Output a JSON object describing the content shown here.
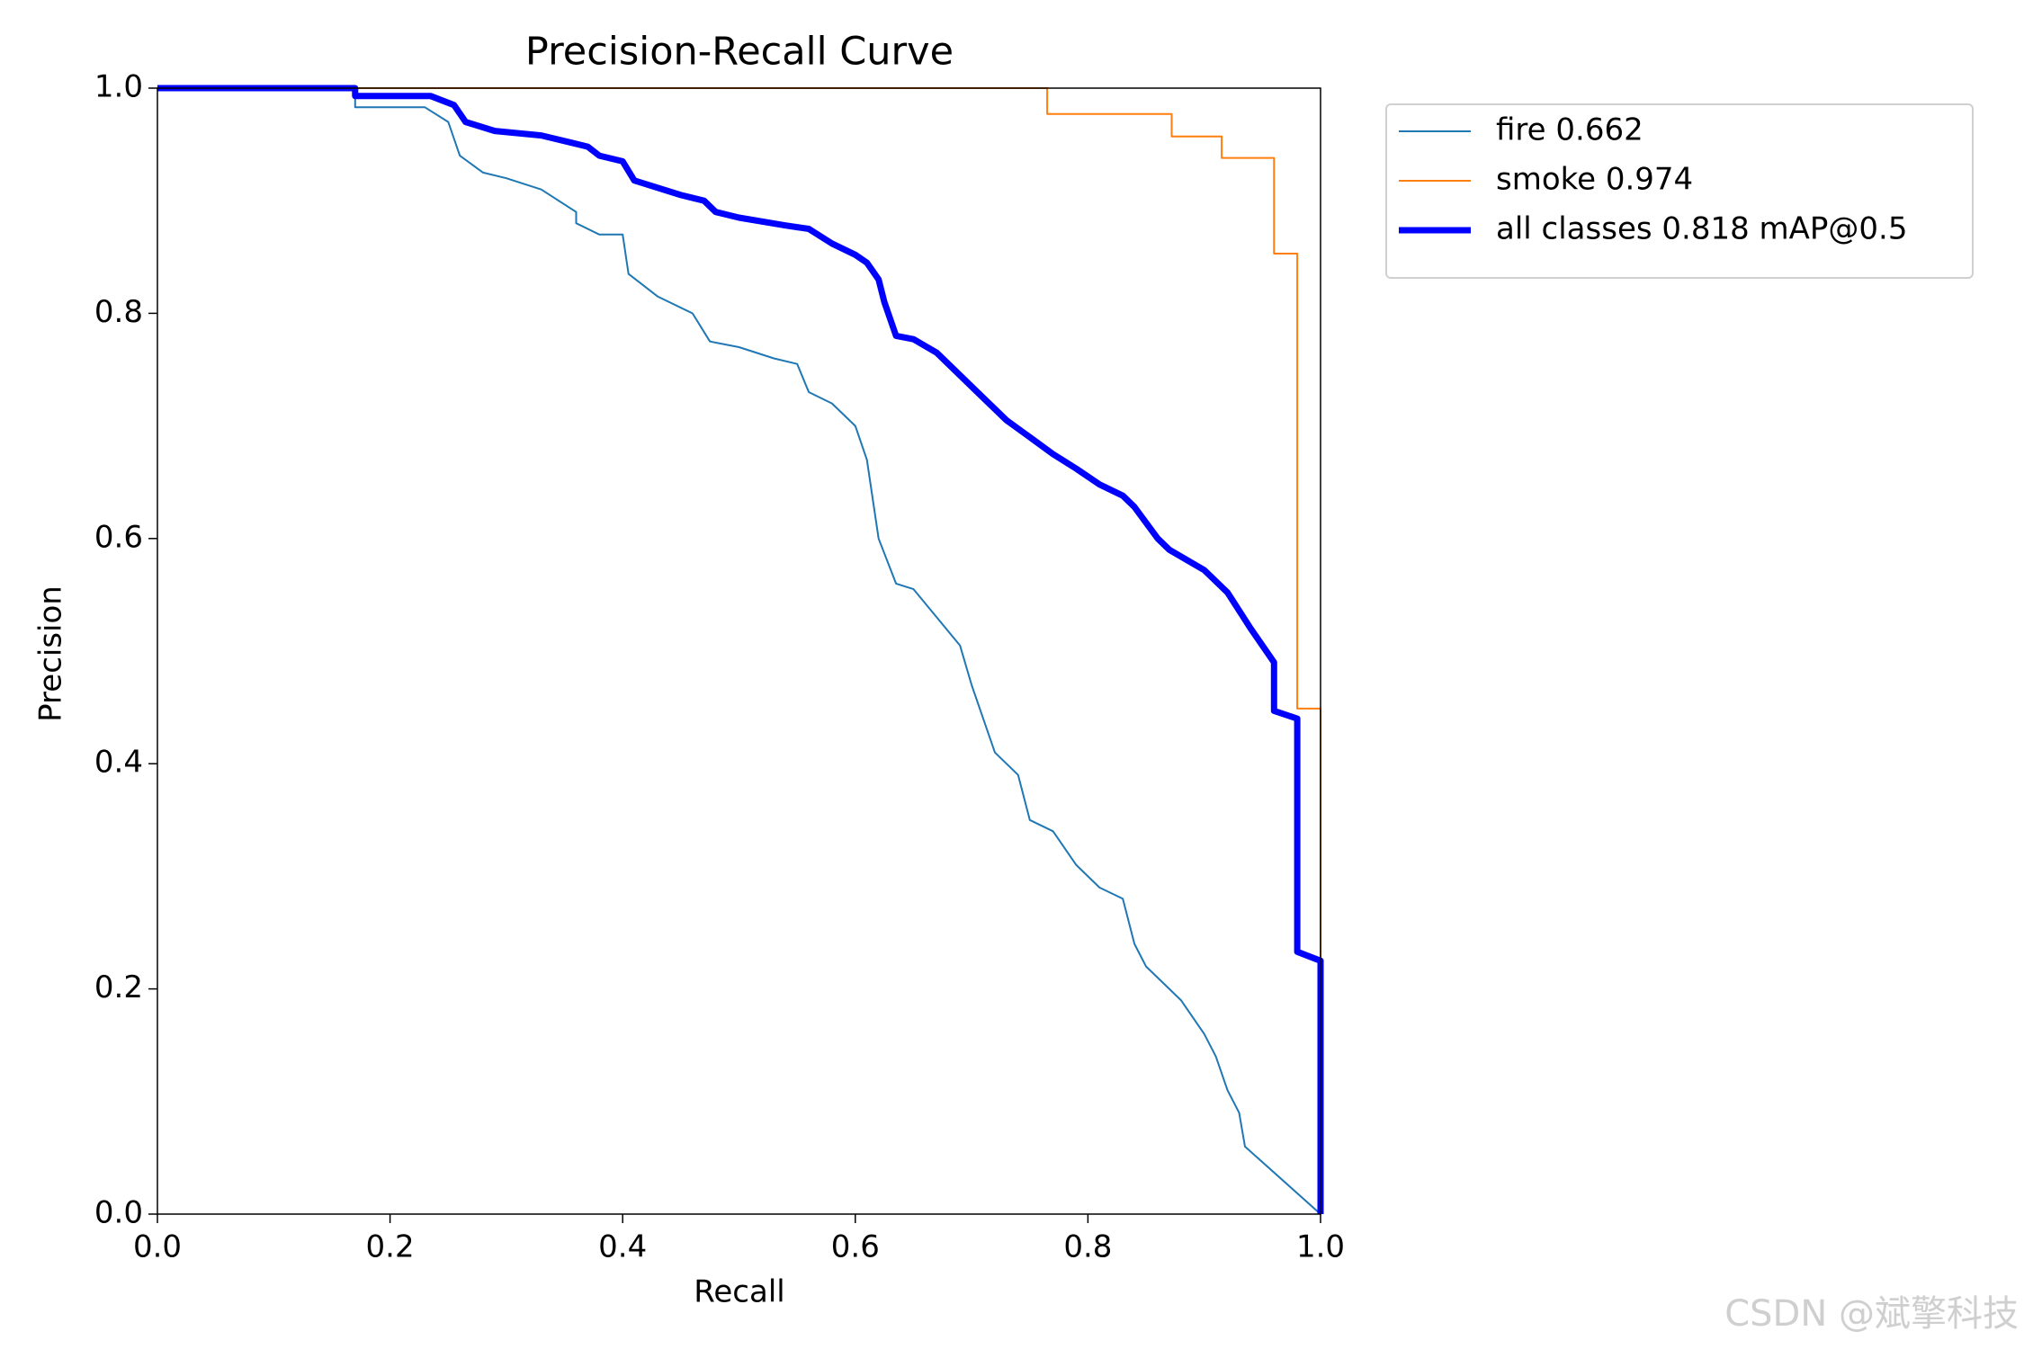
{
  "chart_data": {
    "type": "line",
    "title": "Precision-Recall Curve",
    "x_label": "Recall",
    "y_label": "Precision",
    "xlim": [
      0,
      1
    ],
    "ylim": [
      0,
      1
    ],
    "xticks": [
      {
        "value": 0,
        "label": "0.0"
      },
      0.2,
      0.4,
      0.6,
      0.8,
      {
        "value": 1,
        "label": "1.0"
      }
    ],
    "yticks": [
      {
        "value": 0,
        "label": "0.0"
      },
      0.2,
      0.4,
      0.6,
      0.8,
      {
        "value": 1,
        "label": "1.0"
      }
    ],
    "series": [
      {
        "name": "fire 0.662",
        "color": "#1f77b4",
        "line_width": 2,
        "x": [
          0,
          0.17,
          0.17,
          0.23,
          0.25,
          0.26,
          0.28,
          0.3,
          0.33,
          0.36,
          0.36,
          0.38,
          0.4,
          0.405,
          0.43,
          0.46,
          0.475,
          0.5,
          0.53,
          0.55,
          0.56,
          0.58,
          0.6,
          0.61,
          0.62,
          0.635,
          0.65,
          0.67,
          0.69,
          0.7,
          0.71,
          0.72,
          0.74,
          0.75,
          0.77,
          0.79,
          0.8,
          0.81,
          0.83,
          0.84,
          0.85,
          0.87,
          0.88,
          0.9,
          0.91,
          0.92,
          0.93,
          0.935,
          1.0
        ],
        "values": [
          1,
          1,
          0.983,
          0.983,
          0.97,
          0.94,
          0.925,
          0.92,
          0.91,
          0.89,
          0.88,
          0.87,
          0.87,
          0.835,
          0.815,
          0.8,
          0.775,
          0.77,
          0.76,
          0.755,
          0.73,
          0.72,
          0.7,
          0.67,
          0.6,
          0.56,
          0.555,
          0.53,
          0.505,
          0.47,
          0.44,
          0.41,
          0.39,
          0.35,
          0.34,
          0.31,
          0.3,
          0.29,
          0.28,
          0.24,
          0.22,
          0.2,
          0.19,
          0.16,
          0.14,
          0.11,
          0.09,
          0.06,
          0
        ]
      },
      {
        "name": "smoke 0.974",
        "color": "#ff7f0e",
        "line_width": 2,
        "x": [
          0,
          0.765,
          0.765,
          0.872,
          0.872,
          0.915,
          0.915,
          0.96,
          0.96,
          0.98,
          0.98,
          1.0,
          1.0
        ],
        "values": [
          1,
          1,
          0.977,
          0.977,
          0.957,
          0.957,
          0.938,
          0.938,
          0.853,
          0.853,
          0.449,
          0.449,
          0.22
        ]
      },
      {
        "name": "all classes 0.818 mAP@0.5",
        "color": "#0000ff",
        "line_width": 7,
        "x": [
          0,
          0.17,
          0.17,
          0.235,
          0.255,
          0.265,
          0.29,
          0.33,
          0.37,
          0.38,
          0.4,
          0.41,
          0.45,
          0.47,
          0.48,
          0.5,
          0.54,
          0.56,
          0.58,
          0.6,
          0.61,
          0.62,
          0.625,
          0.635,
          0.65,
          0.67,
          0.69,
          0.71,
          0.73,
          0.75,
          0.77,
          0.79,
          0.81,
          0.83,
          0.84,
          0.86,
          0.87,
          0.9,
          0.92,
          0.94,
          0.96,
          0.96,
          0.98,
          0.98,
          1.0,
          1.0
        ],
        "values": [
          1,
          1,
          0.993,
          0.993,
          0.985,
          0.97,
          0.962,
          0.958,
          0.948,
          0.94,
          0.935,
          0.918,
          0.905,
          0.9,
          0.89,
          0.885,
          0.878,
          0.875,
          0.862,
          0.852,
          0.845,
          0.83,
          0.81,
          0.78,
          0.777,
          0.765,
          0.745,
          0.725,
          0.705,
          0.69,
          0.675,
          0.662,
          0.648,
          0.638,
          0.628,
          0.6,
          0.59,
          0.572,
          0.552,
          0.52,
          0.49,
          0.447,
          0.44,
          0.233,
          0.225,
          0
        ]
      }
    ]
  },
  "watermark": "CSDN @斌擎科技"
}
